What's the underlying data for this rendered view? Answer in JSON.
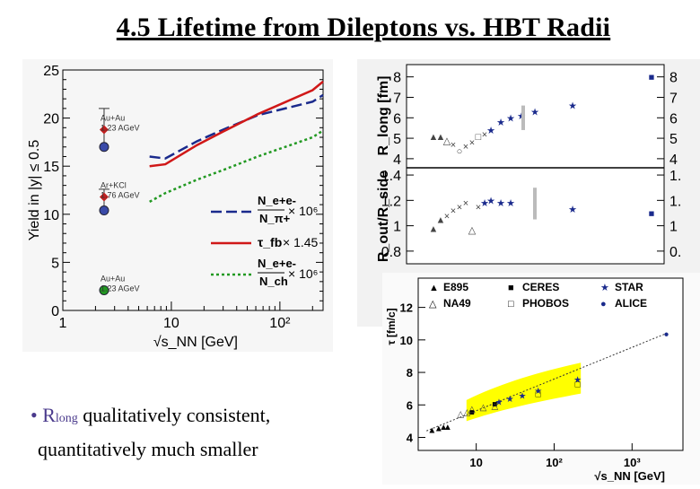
{
  "slide": {
    "title": "4.5 Lifetime from Dileptons vs. HBT Radii",
    "bullet_dot": "•",
    "bullet_R": "R",
    "bullet_sub": "long",
    "bullet_line1_rest": " qualitatively consistent,",
    "bullet_line2": "quantitatively much smaller"
  },
  "chart_data": [
    {
      "type": "line",
      "xscale": "log",
      "xlim": [
        1,
        250
      ],
      "ylim": [
        0,
        25
      ],
      "xlabel": "√s_NN [GeV]",
      "ylabel": "Yield in |y| ≤ 0.5",
      "x_tick_labels": [
        "1",
        "10",
        "10²"
      ],
      "y_tick_labels": [
        "0",
        "5",
        "10",
        "15",
        "20",
        "25"
      ],
      "series": [
        {
          "name": "N_e+e- / N_π+ × 10^6",
          "style": "dashed",
          "color": "#1a2a8c",
          "x": [
            6.3,
            8.8,
            17.3,
            30,
            62.4,
            200,
            250
          ],
          "y": [
            16,
            15.8,
            17.6,
            18.8,
            20.3,
            21.7,
            22.4
          ]
        },
        {
          "name": "τ_fb × 1.45",
          "style": "solid",
          "color": "#d01818",
          "x": [
            6.3,
            8.8,
            17.3,
            30,
            62.4,
            200,
            250
          ],
          "y": [
            15.0,
            15.2,
            17.2,
            18.6,
            20.4,
            22.9,
            23.8
          ]
        },
        {
          "name": "N_e+e- / N_ch × 10^6",
          "style": "dotted",
          "color": "#229922",
          "x": [
            6.3,
            8.8,
            17.3,
            30,
            62.4,
            200,
            250
          ],
          "y": [
            11.3,
            12.2,
            13.6,
            14.6,
            16.0,
            18.0,
            18.7
          ]
        }
      ],
      "points": [
        {
          "label_lines": [
            "Au+Au",
            "1.23 AGeV"
          ],
          "x": 2.4,
          "markers": [
            {
              "y": 18.8,
              "color": "#c02020",
              "shape": "diamond",
              "err": [
                16.8,
                21.0
              ]
            },
            {
              "y": 17.0,
              "color": "#3a4aa8",
              "shape": "circle"
            }
          ]
        },
        {
          "label_lines": [
            "Ar+KCl",
            "1.76 AGeV"
          ],
          "x": 2.4,
          "markers": [
            {
              "y": 11.8,
              "color": "#c02020",
              "shape": "diamond",
              "err": [
                10.8,
                12.6
              ]
            },
            {
              "y": 10.4,
              "color": "#3a4aa8",
              "shape": "circle"
            }
          ]
        },
        {
          "label_lines": [
            "Au+Au",
            "1.23 AGeV"
          ],
          "x": 2.4,
          "markers": [
            {
              "y": 2.1,
              "color": "#229922",
              "shape": "circle"
            }
          ]
        }
      ],
      "legend": [
        {
          "text": "N_e+e-",
          "den": "N_π+",
          "factor": "× 10⁶",
          "style": "dashed",
          "color": "#1a2a8c"
        },
        {
          "text": "τ_fb",
          "factor": "× 1.45",
          "style": "solid",
          "color": "#d01818"
        },
        {
          "text": "N_e+e-",
          "den": "N_ch",
          "factor": "× 10⁶",
          "style": "dotted",
          "color": "#229922"
        }
      ]
    },
    {
      "type": "scatter",
      "ylabel_top": "R_long [fm]",
      "ylabel_bot": "R_out/R_side",
      "top_y_ticks": [
        "4",
        "5",
        "6",
        "7",
        "8"
      ],
      "top_y_ticks_right": [
        "4",
        "5",
        "6",
        "7",
        "8"
      ],
      "bot_y_ticks": [
        "0.8",
        "1",
        "1.2",
        "1.4"
      ],
      "bot_y_ticks_right": [
        "0.",
        "1",
        "1.",
        "1."
      ]
    },
    {
      "type": "scatter",
      "xscale": "log",
      "ylabel": "τ [fm/c]",
      "xlabel": "√s_NN [GeV]",
      "x_tick_labels": [
        "10",
        "10²",
        "10³"
      ],
      "y_tick_labels": [
        "4",
        "6",
        "8",
        "10",
        "12"
      ],
      "legend": [
        {
          "label": "E895",
          "marker": "▲",
          "color": "#000000"
        },
        {
          "label": "CERES",
          "marker": "■",
          "color": "#000000"
        },
        {
          "label": "STAR",
          "marker": "★",
          "color": "#1a2a8c"
        },
        {
          "label": "NA49",
          "marker": "△",
          "color": "#000000"
        },
        {
          "label": "PHOBOS",
          "marker": "□",
          "color": "#000000"
        },
        {
          "label": "ALICE",
          "marker": "●",
          "color": "#1a2a8c"
        }
      ],
      "points": [
        {
          "series": "E895",
          "x": [
            2.7,
            3.3,
            3.8,
            4.3
          ],
          "y": [
            4.5,
            4.6,
            4.7,
            4.7
          ]
        },
        {
          "series": "CERES",
          "x": [
            8.8,
            17.3
          ],
          "y": [
            5.6,
            6.1
          ]
        },
        {
          "series": "NA49",
          "x": [
            6.3,
            7.6,
            8.8,
            12.3,
            17.3
          ],
          "y": [
            5.5,
            5.6,
            5.8,
            5.9,
            6.0
          ]
        },
        {
          "series": "PHOBOS",
          "x": [
            62.4,
            200
          ],
          "y": [
            6.7,
            7.3
          ]
        },
        {
          "series": "STAR",
          "x": [
            19.6,
            27,
            39,
            62.4,
            200
          ],
          "y": [
            6.2,
            6.4,
            6.6,
            6.9,
            7.6
          ]
        },
        {
          "series": "ALICE",
          "x": [
            2760
          ],
          "y": [
            10.4
          ]
        }
      ],
      "band_color": "#ffff00"
    }
  ]
}
